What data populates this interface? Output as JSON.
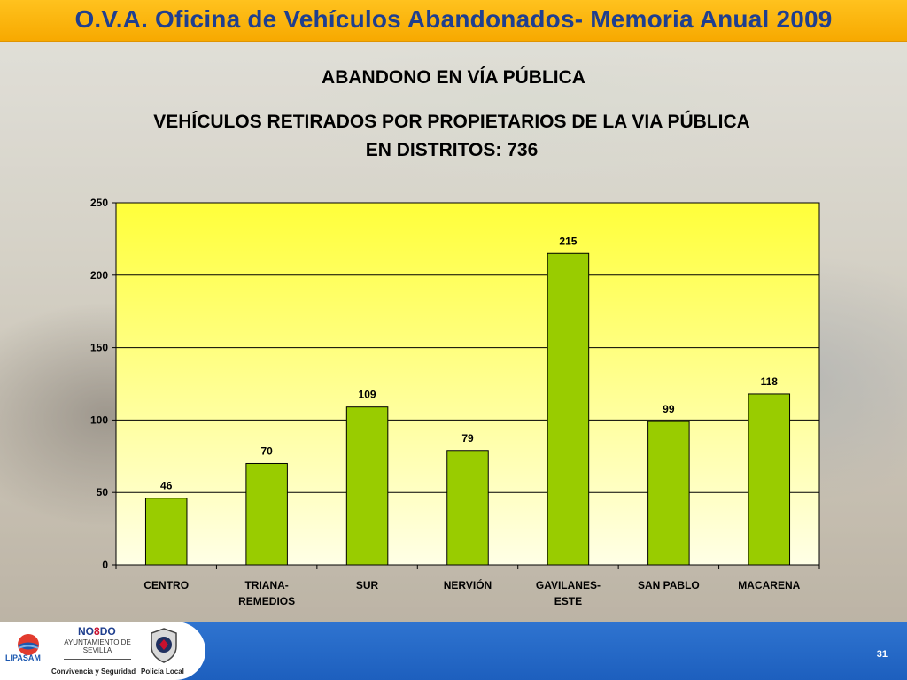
{
  "header": {
    "title": "O.V.A. Oficina de Vehículos Abandonados- Memoria Anual 2009"
  },
  "headings": {
    "line1": "ABANDONO EN VÍA PÚBLICA",
    "line2": "VEHÍCULOS RETIRADOS POR PROPIETARIOS DE LA VIA PÚBLICA EN DISTRITOS: 736"
  },
  "chart_data": {
    "type": "bar",
    "categories": [
      "CENTRO",
      "TRIANA-REMEDIOS",
      "SUR",
      "NERVIÓN",
      "GAVILANES-ESTE",
      "SAN PABLO",
      "MACARENA"
    ],
    "category_lines": [
      [
        "CENTRO"
      ],
      [
        "TRIANA-",
        "REMEDIOS"
      ],
      [
        "SUR"
      ],
      [
        "NERVIÓN"
      ],
      [
        "GAVILANES-",
        "ESTE"
      ],
      [
        "SAN PABLO"
      ],
      [
        "MACARENA"
      ]
    ],
    "values": [
      46,
      70,
      109,
      79,
      215,
      99,
      118
    ],
    "ylim": [
      0,
      250
    ],
    "yticks": [
      0,
      50,
      100,
      150,
      200,
      250
    ],
    "grid": true,
    "legend": "none",
    "colors": {
      "bar": "#99cc00",
      "bar_border": "#000000",
      "plot_top": "#ffff3a",
      "plot_bottom": "#ffffe6"
    }
  },
  "footer": {
    "logo_lipasam": "LIPASAM",
    "logo_nodo": "NO8DO",
    "logo_ayuntamiento": "AYUNTAMIENTO DE SEVILLA",
    "tagline": "Convivencia y Seguridad",
    "policia": "Policía Local",
    "page_number": "31"
  }
}
